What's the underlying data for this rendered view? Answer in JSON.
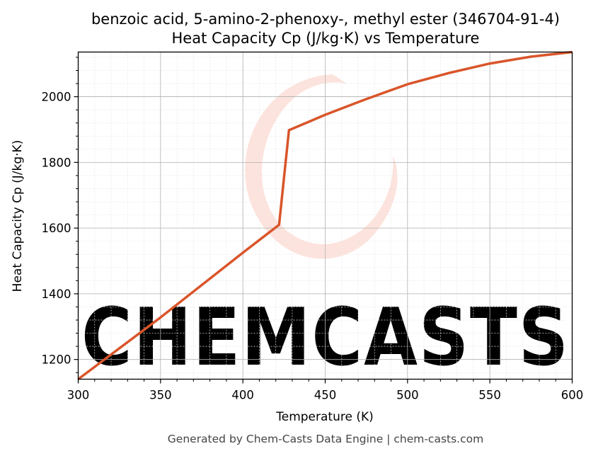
{
  "figure": {
    "footer": "Generated by Chem-Casts Data Engine | chem-casts.com",
    "watermark": "CHEMCASTS",
    "colors": {
      "line": "#d9552a",
      "watermark": "#fde3dd",
      "grid_major": "#b0b0b0",
      "grid_minor": "#e6e6e6"
    }
  },
  "chart_data": {
    "type": "line",
    "title_line1": "benzoic acid, 5-amino-2-phenoxy-, methyl ester (346704-91-4)",
    "title_line2": "Heat Capacity Cp (J/kg·K) vs Temperature",
    "xlabel": "Temperature (K)",
    "ylabel": "Heat Capacity Cp (J/kg·K)",
    "xlim": [
      300,
      600
    ],
    "ylim": [
      1140,
      2136
    ],
    "xticks": [
      300,
      350,
      400,
      450,
      500,
      550,
      600
    ],
    "yticks": [
      1200,
      1400,
      1600,
      1800,
      2000
    ],
    "grid": true,
    "series": [
      {
        "x": [
          300,
          350,
          400,
          422,
          428,
          450,
          475,
          500,
          525,
          550,
          575,
          600
        ],
        "y": [
          1140,
          1328,
          1525,
          1610,
          1898,
          1945,
          1993,
          2038,
          2072,
          2101,
          2122,
          2136
        ]
      }
    ]
  }
}
